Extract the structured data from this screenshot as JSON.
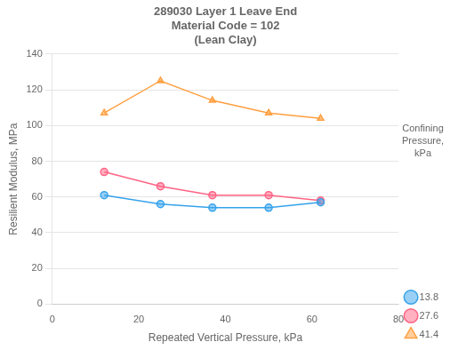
{
  "chart_data": {
    "type": "line",
    "title": "289030 Layer 1 Leave End\nMaterial Code = 102\n(Lean Clay)",
    "x_label": "Repeated Vertical Pressure, kPa",
    "y_label": "Resilient Modulus, MPa",
    "x": [
      12,
      25,
      37,
      50,
      62
    ],
    "series": [
      {
        "name": "13.8",
        "values": [
          61,
          56,
          54,
          54,
          57
        ],
        "marker": "circle",
        "line_style": "solid"
      },
      {
        "name": "27.6",
        "values": [
          74,
          66,
          61,
          61,
          58
        ],
        "marker": "square",
        "line_style": "solid"
      },
      {
        "name": "41.4",
        "values": [
          107,
          125,
          114,
          107,
          104
        ],
        "marker": "triangle",
        "line_style": "solid"
      }
    ],
    "xlim": [
      0,
      80
    ],
    "ylim": [
      0,
      140
    ],
    "xticks": [
      0,
      20,
      40,
      60,
      80
    ],
    "yticks": [
      0,
      20,
      40,
      60,
      80,
      100,
      120,
      140
    ],
    "grid": "y",
    "legend": "lower right",
    "annotation": "Confining\nPressure,\nkPa"
  }
}
